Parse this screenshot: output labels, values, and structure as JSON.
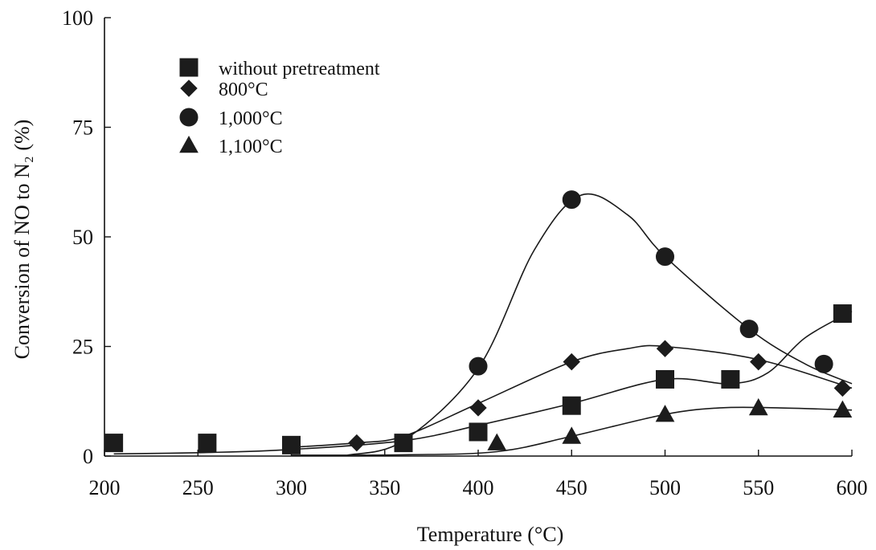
{
  "chart_data": {
    "type": "scatter",
    "title": "",
    "xlabel": "Temperature (°C)",
    "ylabel": "Conversion of NO to N₂ (%)",
    "xlim": [
      200,
      600
    ],
    "ylim": [
      0,
      100
    ],
    "xticks": [
      200,
      250,
      300,
      350,
      400,
      450,
      500,
      550,
      600
    ],
    "yticks": [
      0,
      25,
      50,
      75,
      100
    ],
    "grid": false,
    "legend_position": "top-left",
    "series": [
      {
        "name": "without pretreatment",
        "marker": "square",
        "x": [
          205,
          255,
          300,
          360,
          400,
          450,
          500,
          535,
          595
        ],
        "y": [
          3,
          3,
          2.5,
          3,
          5.5,
          11.5,
          17.5,
          17.5,
          32.5
        ]
      },
      {
        "name": "800°C",
        "marker": "diamond",
        "x": [
          335,
          400,
          450,
          500,
          550,
          595
        ],
        "y": [
          3,
          11,
          21.5,
          24.5,
          21.5,
          15.5
        ]
      },
      {
        "name": "1,000°C",
        "marker": "circle",
        "x": [
          400,
          450,
          500,
          545,
          585
        ],
        "y": [
          20.5,
          58.5,
          45.5,
          29,
          21
        ]
      },
      {
        "name": "1,100°C",
        "marker": "triangle",
        "x": [
          410,
          450,
          500,
          550,
          595
        ],
        "y": [
          3,
          4.5,
          9.5,
          11,
          10.5
        ]
      }
    ],
    "curves": [
      {
        "series": "without pretreatment",
        "x": [
          205,
          255,
          300,
          360,
          400,
          450,
          500,
          535,
          555,
          575,
          600
        ],
        "y": [
          0.5,
          0.8,
          1.5,
          3.5,
          7,
          12,
          17.5,
          16.5,
          19,
          27,
          33
        ]
      },
      {
        "series": "800°C",
        "x": [
          300,
          335,
          360,
          400,
          450,
          480,
          500,
          550,
          600
        ],
        "y": [
          2,
          3,
          4.5,
          12,
          21.5,
          24.5,
          25,
          22,
          15.5
        ]
      },
      {
        "series": "1,000°C",
        "x": [
          330,
          360,
          400,
          430,
          455,
          480,
          500,
          545,
          575,
          600
        ],
        "y": [
          0.2,
          3.5,
          20,
          47,
          59.5,
          55,
          45.5,
          29,
          21,
          16.5
        ]
      },
      {
        "series": "1,100°C",
        "x": [
          300,
          360,
          410,
          450,
          500,
          530,
          560,
          600
        ],
        "y": [
          0.2,
          0.3,
          1,
          4.5,
          9.5,
          11,
          11,
          10.5
        ]
      }
    ]
  }
}
